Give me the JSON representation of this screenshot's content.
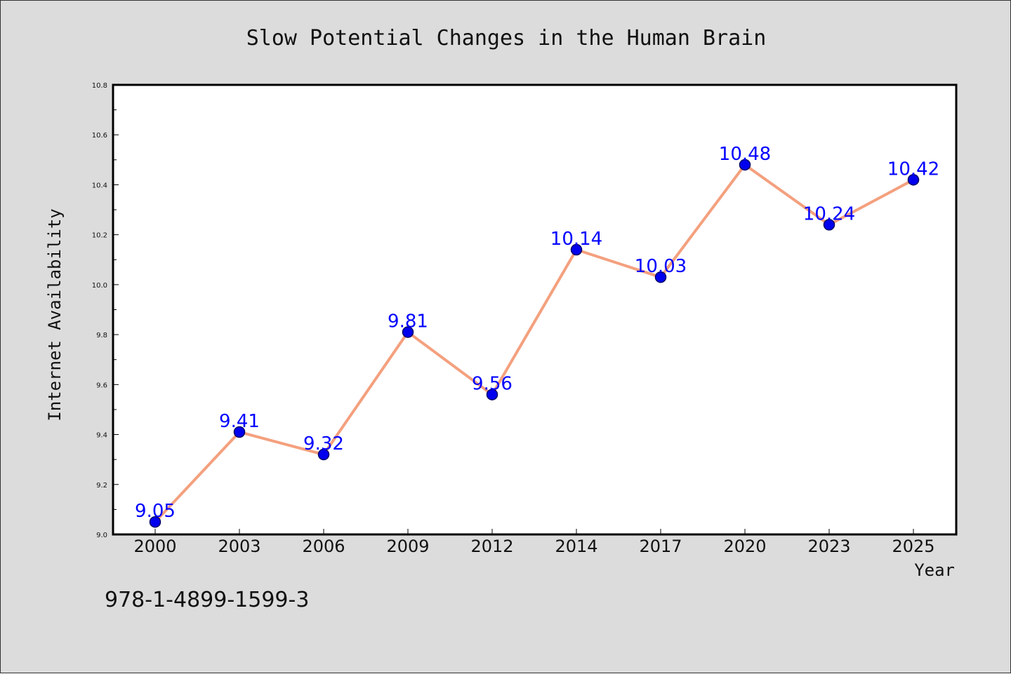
{
  "chart_data": {
    "type": "line",
    "title": "Slow Potential Changes in the Human Brain",
    "xlabel": "Year",
    "ylabel": "Internet Availability",
    "categories": [
      "2000",
      "2003",
      "2006",
      "2009",
      "2012",
      "2014",
      "2017",
      "2020",
      "2023",
      "2025"
    ],
    "values": [
      9.05,
      9.41,
      9.32,
      9.81,
      9.56,
      10.14,
      10.03,
      10.48,
      10.24,
      10.42
    ],
    "data_labels": [
      "9.05",
      "9.41",
      "9.32",
      "9.81",
      "9.56",
      "10.14",
      "10.03",
      "10.48",
      "10.24",
      "10.42"
    ],
    "ylim": [
      9.0,
      10.8
    ],
    "yticks": [
      "9.0",
      "9.2",
      "9.4",
      "9.6",
      "9.8",
      "10.0",
      "10.2",
      "10.4",
      "10.6",
      "10.8"
    ],
    "grid": false,
    "legend": "none",
    "colors": {
      "line": "#f4a07e",
      "marker": "#0000ee",
      "marker_edge": "#000066",
      "label": "#0000ff",
      "plot_background": "#ffffff",
      "figure_background": "#dcdcdc"
    }
  },
  "footnote": "978-1-4899-1599-3"
}
